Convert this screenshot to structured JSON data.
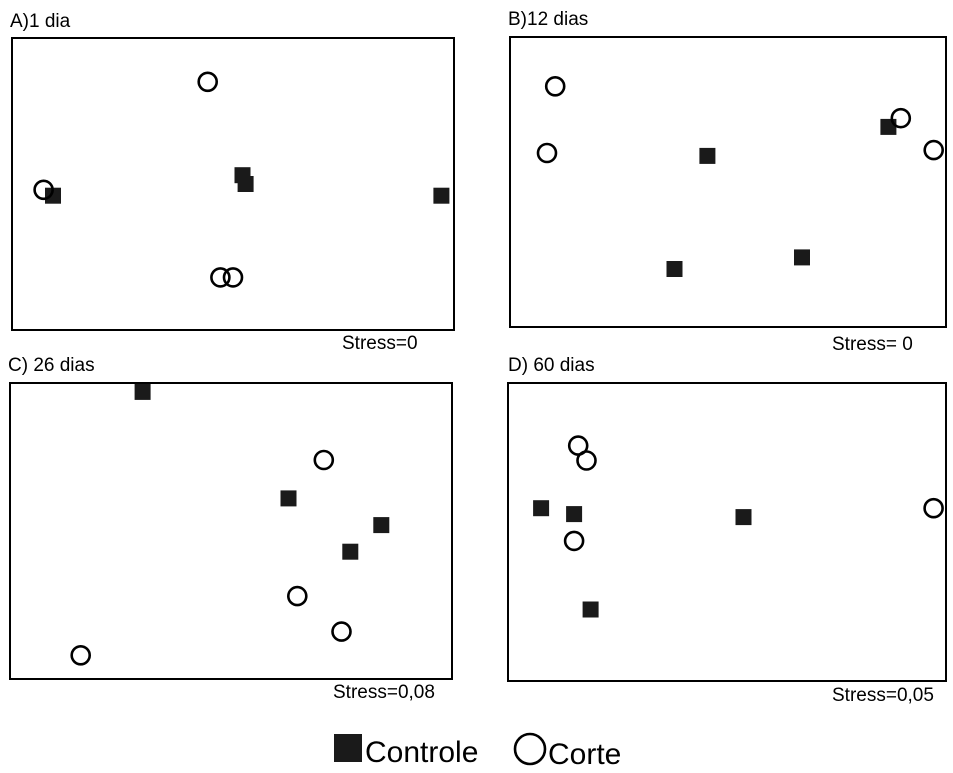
{
  "chart_data": [
    {
      "type": "scatter",
      "title": "A)1 dia",
      "stress": "Stress=0",
      "series": [
        {
          "name": "Controle",
          "marker": "square",
          "points": [
            [
              0.13,
              0.46
            ],
            [
              0.73,
              0.53
            ],
            [
              0.74,
              0.5
            ],
            [
              1.36,
              0.46
            ]
          ]
        },
        {
          "name": "Corte",
          "marker": "circle",
          "points": [
            [
              0.1,
              0.48
            ],
            [
              0.62,
              0.85
            ],
            [
              0.66,
              0.18
            ],
            [
              0.7,
              0.18
            ]
          ]
        }
      ]
    },
    {
      "type": "scatter",
      "title": "B)12 dias",
      "stress": "Stress= 0",
      "series": [
        {
          "name": "Controle",
          "marker": "square",
          "points": [
            [
              0.48,
              0.59
            ],
            [
              0.4,
              0.2
            ],
            [
              0.71,
              0.24
            ],
            [
              0.92,
              0.69
            ]
          ]
        },
        {
          "name": "Corte",
          "marker": "circle",
          "points": [
            [
              0.11,
              0.83
            ],
            [
              0.09,
              0.6
            ],
            [
              0.95,
              0.72
            ],
            [
              1.03,
              0.61
            ]
          ]
        }
      ]
    },
    {
      "type": "scatter",
      "title": "C) 26 dias",
      "stress": "Stress=0,08",
      "series": [
        {
          "name": "Controle",
          "marker": "square",
          "points": [
            [
              0.3,
              0.97
            ],
            [
              0.63,
              0.61
            ],
            [
              0.77,
              0.43
            ],
            [
              0.84,
              0.52
            ]
          ]
        },
        {
          "name": "Corte",
          "marker": "circle",
          "points": [
            [
              0.71,
              0.74
            ],
            [
              0.65,
              0.28
            ],
            [
              0.75,
              0.16
            ],
            [
              0.16,
              0.08
            ]
          ]
        }
      ]
    },
    {
      "type": "scatter",
      "title": "D) 60 dias",
      "stress": "Stress=0,05",
      "series": [
        {
          "name": "Controle",
          "marker": "square",
          "points": [
            [
              0.08,
              0.58
            ],
            [
              0.16,
              0.56
            ],
            [
              0.57,
              0.55
            ],
            [
              0.2,
              0.24
            ]
          ]
        },
        {
          "name": "Corte",
          "marker": "circle",
          "points": [
            [
              0.17,
              0.79
            ],
            [
              0.19,
              0.74
            ],
            [
              0.16,
              0.47
            ],
            [
              1.03,
              0.58
            ]
          ]
        }
      ]
    }
  ],
  "legend": {
    "items": [
      {
        "label": "Controle",
        "marker": "square"
      },
      {
        "label": "Corte",
        "marker": "circle"
      }
    ]
  }
}
